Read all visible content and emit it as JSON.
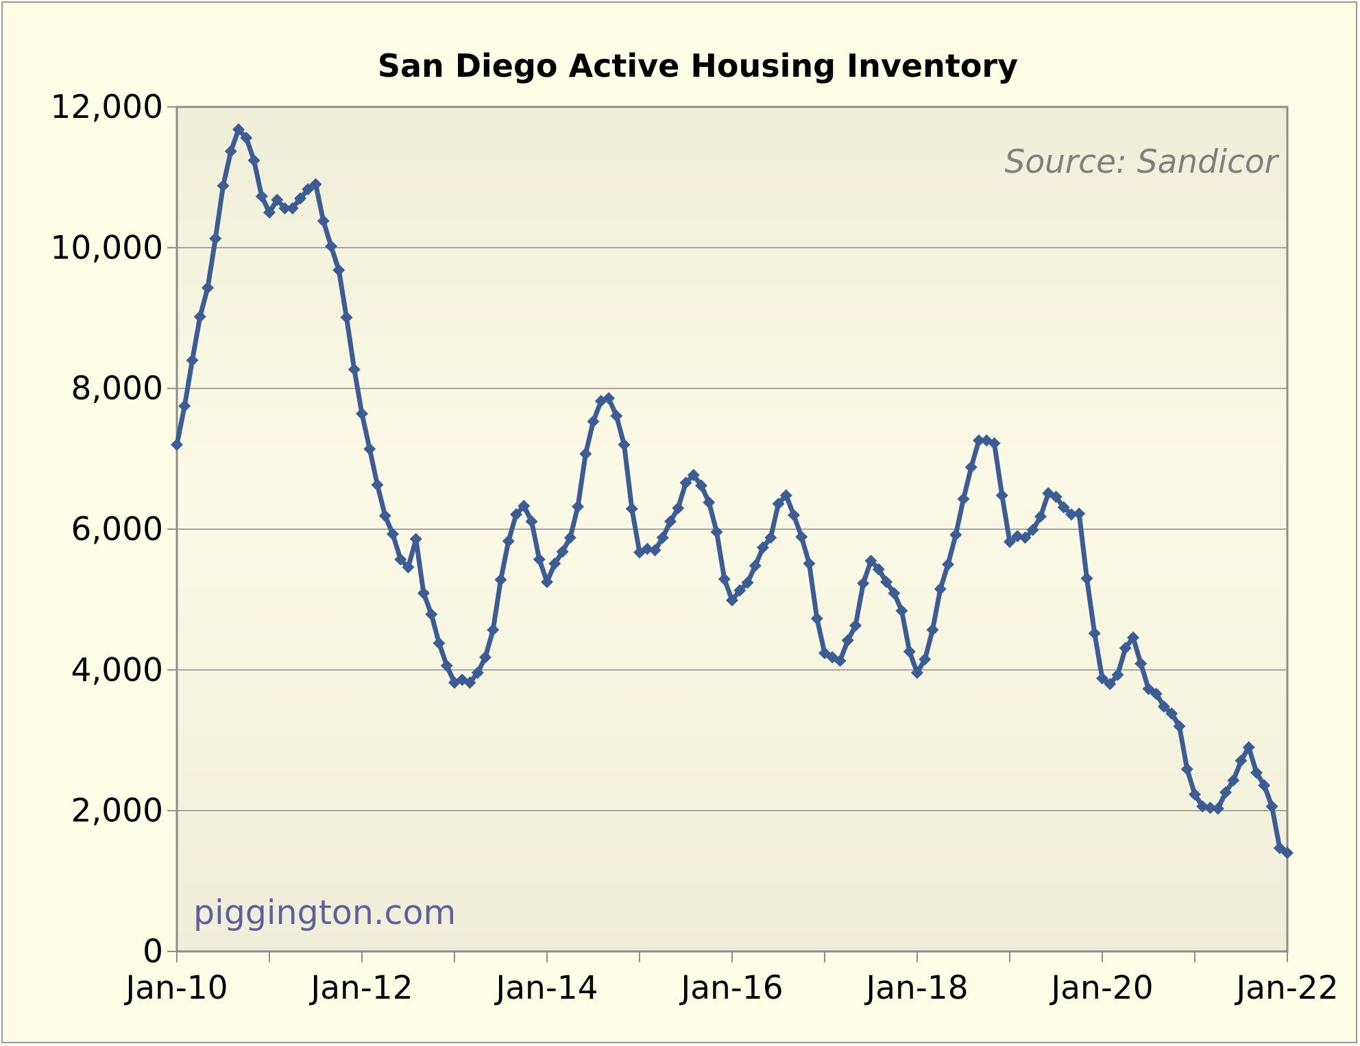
{
  "chart_data": {
    "type": "line",
    "title": "San Diego Active Housing Inventory",
    "annotation": "Source: Sandicor",
    "watermark": "piggington.com",
    "xlabel": "",
    "ylabel": "",
    "x_tick_labels": [
      "Jan-10",
      "Jan-12",
      "Jan-14",
      "Jan-16",
      "Jan-18",
      "Jan-20",
      "Jan-22"
    ],
    "y_tick_labels": [
      "0",
      "2,000",
      "4,000",
      "6,000",
      "8,000",
      "10,000",
      "12,000"
    ],
    "ylim": [
      0,
      12000
    ],
    "x_range": [
      "2010-01",
      "2022-01"
    ],
    "grid": "horizontal",
    "legend": "none",
    "line_color": "#3c5d94",
    "series": [
      {
        "start": "2010-01",
        "frequency": "monthly",
        "values": [
          7200,
          7750,
          8400,
          9020,
          9430,
          10130,
          10880,
          11370,
          11680,
          11560,
          11240,
          10730,
          10500,
          10680,
          10560,
          10560,
          10700,
          10830,
          10900,
          10380,
          10020,
          9680,
          9010,
          8270,
          7640,
          7140,
          6630,
          6190,
          5930,
          5570,
          5460,
          5860,
          5090,
          4790,
          4380,
          4060,
          3820,
          3860,
          3820,
          3960,
          4180,
          4570,
          5280,
          5830,
          6210,
          6330,
          6110,
          5570,
          5250,
          5510,
          5680,
          5880,
          6320,
          7070,
          7530,
          7820,
          7860,
          7610,
          7200,
          6290,
          5670,
          5720,
          5700,
          5880,
          6110,
          6300,
          6660,
          6770,
          6620,
          6380,
          5960,
          5290,
          4990,
          5130,
          5240,
          5480,
          5740,
          5880,
          6360,
          6480,
          6200,
          5890,
          5510,
          4730,
          4240,
          4180,
          4130,
          4420,
          4630,
          5230,
          5550,
          5430,
          5250,
          5090,
          4840,
          4260,
          3960,
          4150,
          4570,
          5150,
          5500,
          5920,
          6430,
          6880,
          7260,
          7260,
          7220,
          6480,
          5820,
          5900,
          5880,
          5990,
          6180,
          6510,
          6460,
          6310,
          6210,
          6220,
          5300,
          4520,
          3880,
          3800,
          3930,
          4310,
          4460,
          4090,
          3730,
          3660,
          3480,
          3380,
          3200,
          2590,
          2230,
          2060,
          2040,
          2030,
          2260,
          2430,
          2710,
          2900,
          2540,
          2360,
          2060,
          1470,
          1400
        ]
      }
    ]
  }
}
